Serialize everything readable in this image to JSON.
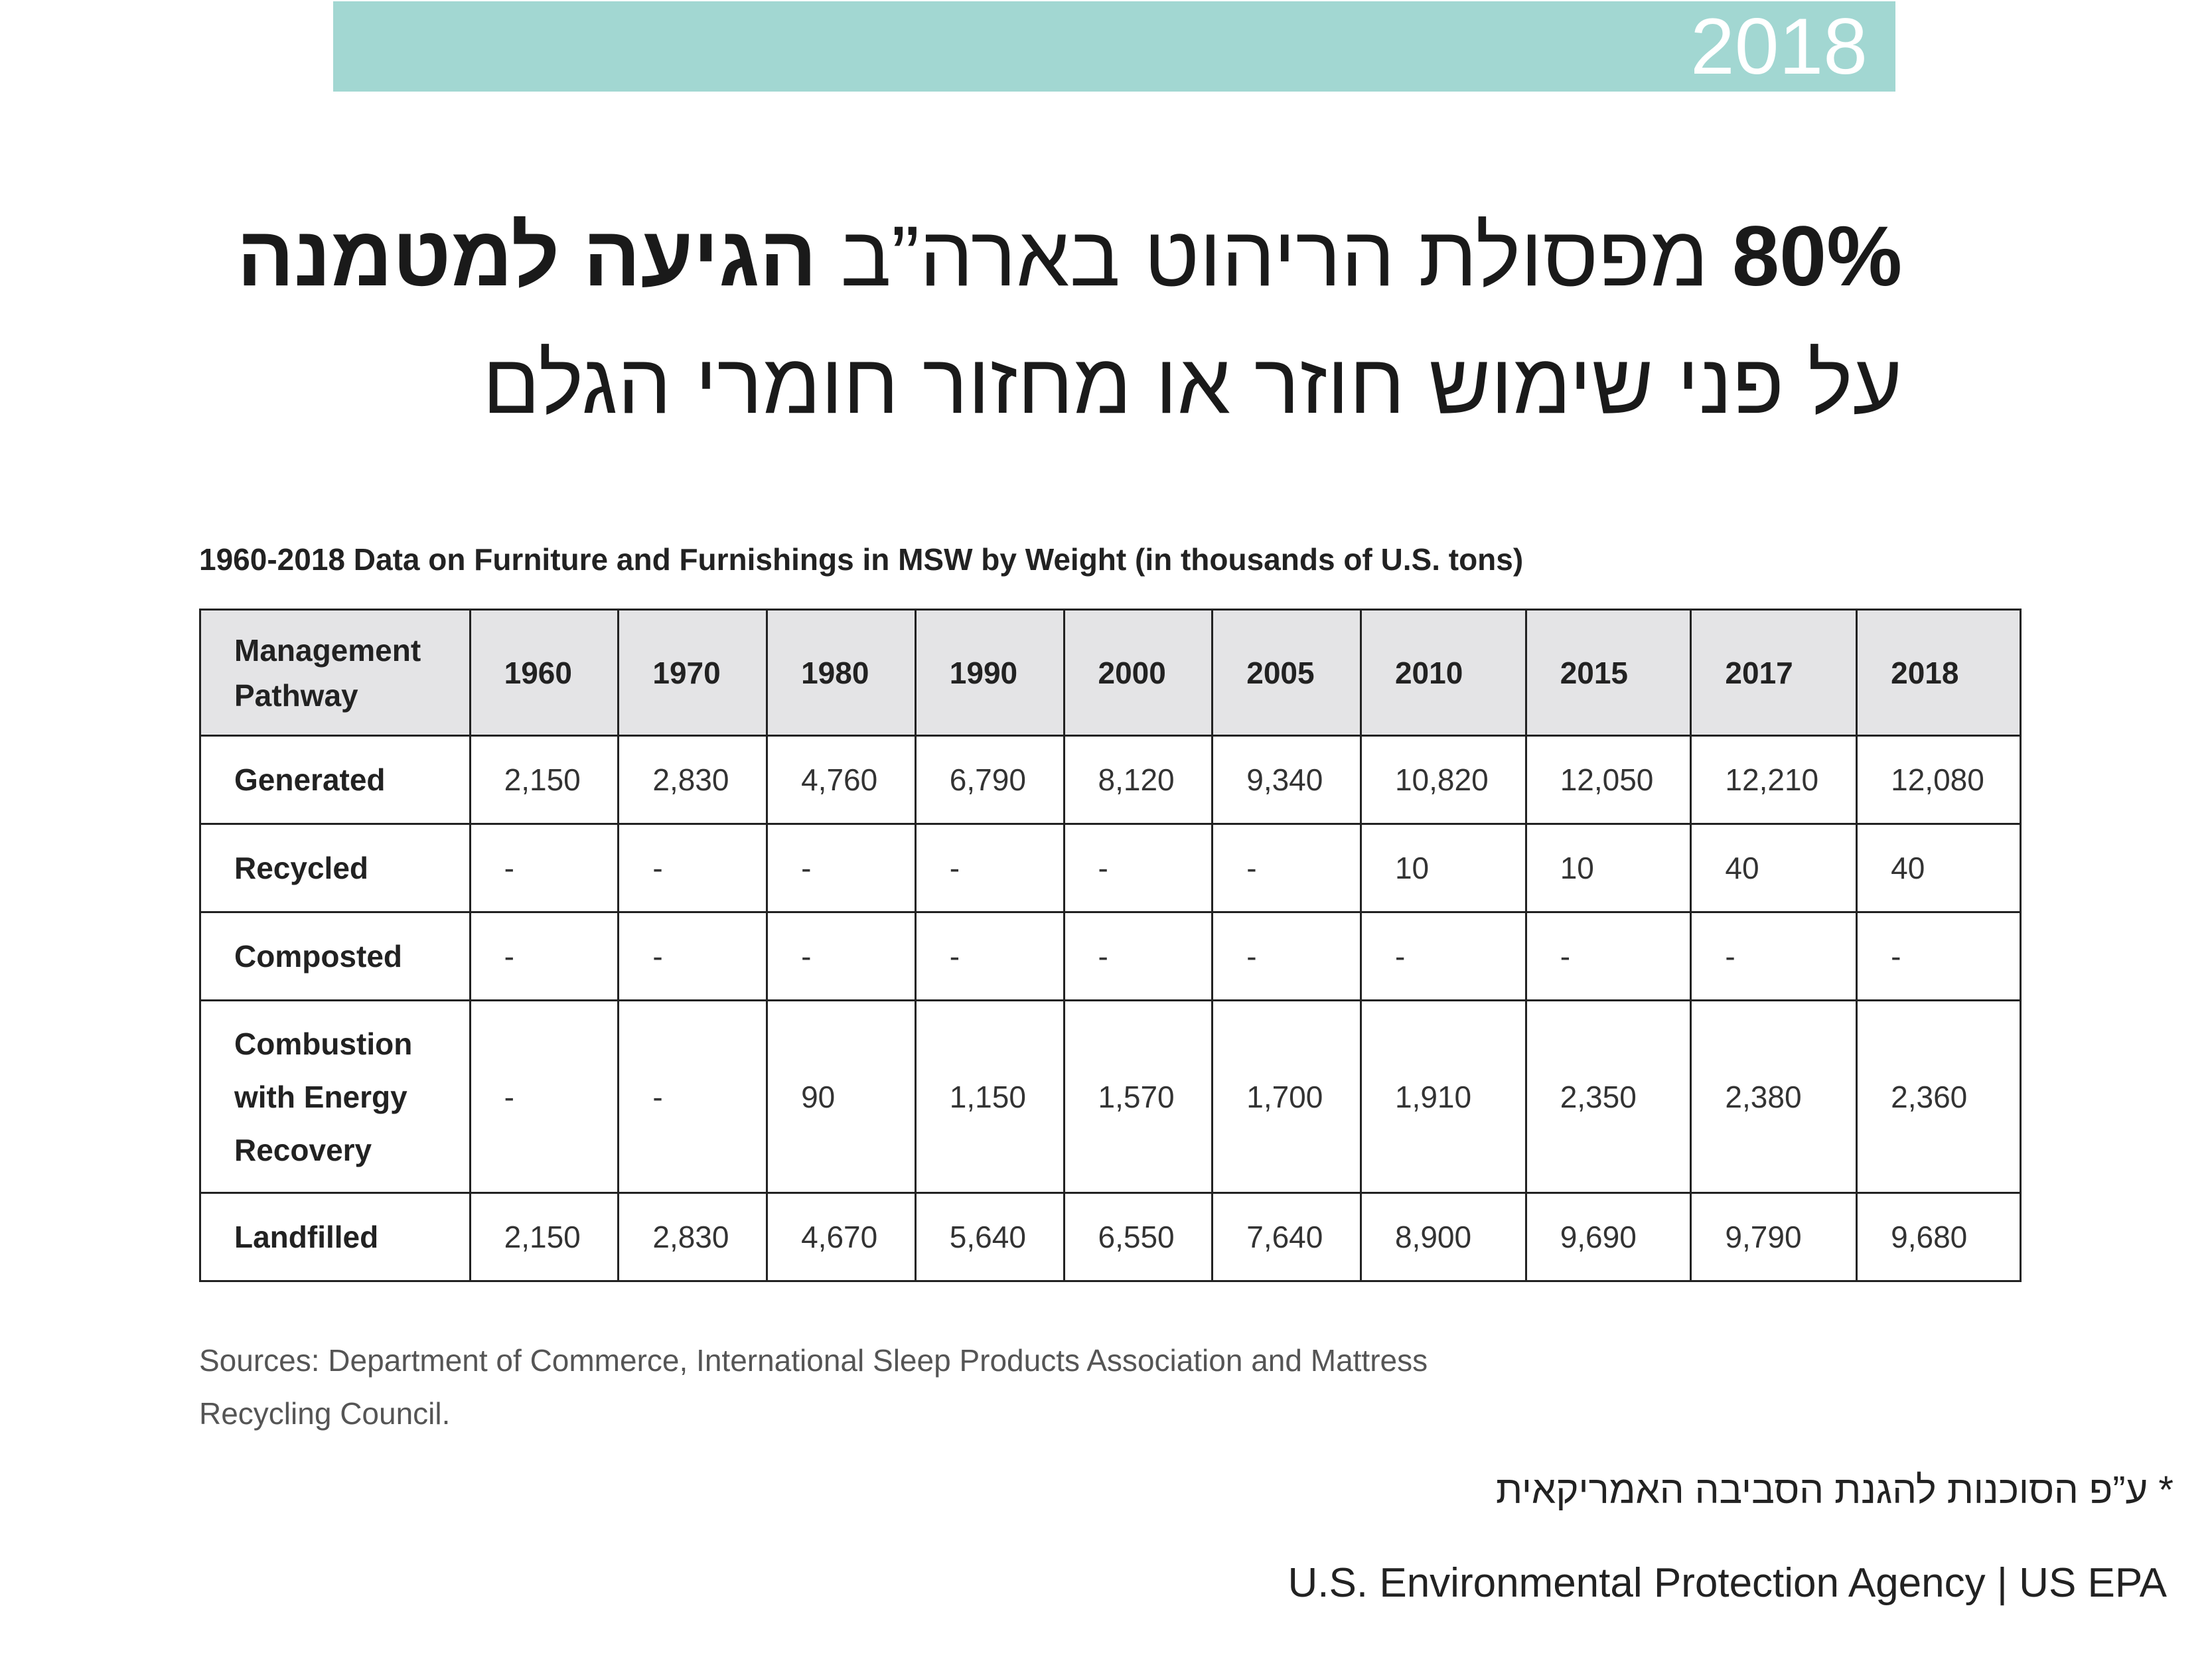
{
  "banner": {
    "year": "2018",
    "color": "#a2d7d2"
  },
  "headline": {
    "line1_bold_start": "80%",
    "line1_regular": " מפסולת הריהוט בארה”ב ",
    "line1_bold_end": "הגיעה למטמנה",
    "line2": "על פני שימוש חוזר או מחזור חומרי הגלם"
  },
  "table": {
    "title": "1960-2018 Data on Furniture and Furnishings in MSW by Weight (in thousands of U.S. tons)",
    "header_line1": "Management",
    "header_line2": "Pathway",
    "years": [
      "1960",
      "1970",
      "1980",
      "1990",
      "2000",
      "2005",
      "2010",
      "2015",
      "2017",
      "2018"
    ],
    "rows": [
      {
        "label": "Generated",
        "values": [
          "2,150",
          "2,830",
          "4,760",
          "6,790",
          "8,120",
          "9,340",
          "10,820",
          "12,050",
          "12,210",
          "12,080"
        ]
      },
      {
        "label": "Recycled",
        "values": [
          "-",
          "-",
          "-",
          "-",
          "-",
          "-",
          "10",
          "10",
          "40",
          "40"
        ]
      },
      {
        "label": "Composted",
        "values": [
          "-",
          "-",
          "-",
          "-",
          "-",
          "-",
          "-",
          "-",
          "-",
          "-"
        ]
      },
      {
        "label_line1": "Combustion",
        "label_line2": "with Energy",
        "label_line3": "Recovery",
        "values": [
          "-",
          "-",
          "90",
          "1,150",
          "1,570",
          "1,700",
          "1,910",
          "2,350",
          "2,380",
          "2,360"
        ]
      },
      {
        "label": "Landfilled",
        "values": [
          "2,150",
          "2,830",
          "4,670",
          "5,640",
          "6,550",
          "7,640",
          "8,900",
          "9,690",
          "9,790",
          "9,680"
        ]
      }
    ],
    "header_bg": "#e4e4e6"
  },
  "sources": {
    "line1": "Sources: Department of Commerce, International Sleep Products Association and Mattress",
    "line2": "Recycling Council."
  },
  "footnote": {
    "hebrew": "* ע”פ הסוכנות להגנת הסביבה האמריקאית",
    "english": "U.S. Environmental Protection Agency | US EPA"
  }
}
